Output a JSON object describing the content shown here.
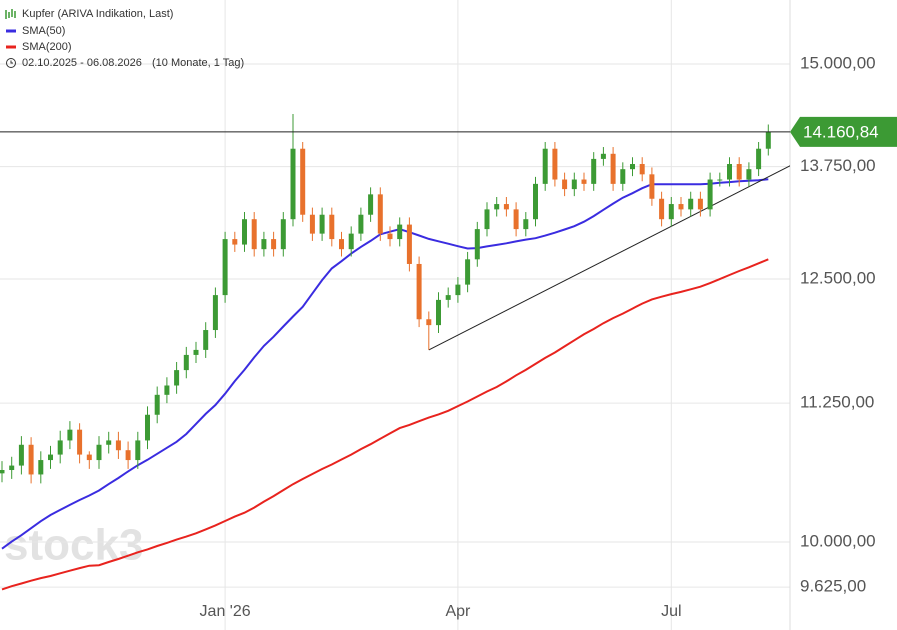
{
  "chart_data": {
    "type": "candlestick",
    "watermark": "stock3",
    "period": "02.10.2025 - 06.08.2026",
    "period_note": "(10 Monate, 1 Tag)",
    "log_scale": true,
    "grid": true,
    "ylim": [
      9281,
      15837
    ],
    "yticks": [
      {
        "value": 9625,
        "label": "9.625,00"
      },
      {
        "value": 10000,
        "label": "10.000,00"
      },
      {
        "value": 11250,
        "label": "11.250,00"
      },
      {
        "value": 12500,
        "label": "12.500,00"
      },
      {
        "value": 13750,
        "label": "13.750,00"
      },
      {
        "value": 15000,
        "label": "15.000,00"
      }
    ],
    "last_price": {
      "value": 14160.84,
      "label": "14.160,84",
      "color": "#3c9a34"
    },
    "trendline": {
      "x_index": [
        44,
        79
      ],
      "values": [
        11770,
        13643
      ],
      "color": "#222222"
    },
    "categories": [
      null,
      null,
      null,
      null,
      null,
      null,
      null,
      null,
      null,
      null,
      null,
      null,
      null,
      null,
      null,
      null,
      null,
      null,
      null,
      null,
      null,
      null,
      null,
      "Jan '26",
      null,
      null,
      null,
      null,
      null,
      null,
      null,
      null,
      null,
      null,
      null,
      null,
      null,
      null,
      null,
      null,
      null,
      null,
      null,
      null,
      null,
      null,
      null,
      "Apr",
      null,
      null,
      null,
      null,
      null,
      null,
      null,
      null,
      null,
      null,
      null,
      null,
      null,
      null,
      null,
      null,
      null,
      null,
      null,
      null,
      null,
      "Jul",
      null,
      null,
      null,
      null,
      null,
      null,
      null,
      null,
      null,
      null
    ],
    "series": [
      {
        "name": "Kupfer (ARIVA Indikation, Last)",
        "color_up": "#3c9a34",
        "color_down": "#e8712c",
        "open": [
          10600,
          10630,
          10670,
          10860,
          10590,
          10720,
          10770,
          10900,
          11000,
          10770,
          10720,
          10860,
          10900,
          10810,
          10720,
          10900,
          11140,
          11330,
          11420,
          11570,
          11720,
          11770,
          11970,
          12330,
          12930,
          12870,
          13150,
          12820,
          12930,
          12820,
          13150,
          13960,
          13200,
          12990,
          13200,
          12930,
          12820,
          12990,
          13200,
          13430,
          12990,
          12930,
          13090,
          12660,
          12080,
          12020,
          12280,
          12330,
          12440,
          12710,
          13040,
          13260,
          13320,
          13260,
          13040,
          13150,
          13550,
          13960,
          13600,
          13490,
          13600,
          13550,
          13840,
          13900,
          13550,
          13720,
          13780,
          13660,
          13380,
          13150,
          13320,
          13260,
          13380,
          13260,
          13600,
          13600,
          13780,
          13600,
          13720,
          13960
        ],
        "high": [
          10710,
          10750,
          10940,
          10930,
          10800,
          10850,
          10990,
          11080,
          11060,
          10800,
          10940,
          10980,
          10980,
          10890,
          10980,
          11220,
          11410,
          11500,
          11650,
          11800,
          11850,
          12050,
          12410,
          13010,
          13010,
          13230,
          13230,
          13010,
          13010,
          13230,
          14378,
          14040,
          13280,
          13280,
          13280,
          13010,
          13070,
          13280,
          13510,
          13510,
          13070,
          13170,
          13170,
          12740,
          12160,
          12360,
          12410,
          12520,
          12790,
          13120,
          13340,
          13400,
          13400,
          13340,
          13230,
          13630,
          14040,
          14040,
          13680,
          13680,
          13680,
          13920,
          13980,
          13980,
          13800,
          13860,
          13860,
          13740,
          13460,
          13400,
          13400,
          13460,
          13460,
          13680,
          13680,
          13860,
          13860,
          13800,
          14040,
          14250
        ],
        "low": [
          10520,
          10550,
          10590,
          10510,
          10510,
          10640,
          10690,
          10820,
          10690,
          10640,
          10640,
          10780,
          10730,
          10640,
          10640,
          10820,
          11060,
          11250,
          11340,
          11490,
          11640,
          11690,
          11890,
          12250,
          12790,
          12790,
          12740,
          12740,
          12740,
          12740,
          13070,
          13120,
          12910,
          12910,
          12850,
          12740,
          12740,
          12910,
          13120,
          12910,
          12850,
          12850,
          12580,
          12000,
          11770,
          11940,
          12200,
          12250,
          12360,
          12630,
          12960,
          13180,
          13180,
          12960,
          12960,
          13070,
          13470,
          13520,
          13410,
          13410,
          13470,
          13470,
          13760,
          13470,
          13470,
          13640,
          13580,
          13300,
          13070,
          13070,
          13180,
          13180,
          13180,
          13180,
          13520,
          13520,
          13520,
          13520,
          13640,
          13880
        ],
        "close": [
          10630,
          10670,
          10860,
          10590,
          10720,
          10770,
          10900,
          11000,
          10770,
          10720,
          10860,
          10900,
          10810,
          10720,
          10900,
          11140,
          11330,
          11420,
          11570,
          11720,
          11770,
          11970,
          12330,
          12930,
          12870,
          13150,
          12820,
          12930,
          12820,
          13150,
          13960,
          13200,
          12990,
          13200,
          12930,
          12820,
          12990,
          13200,
          13430,
          12990,
          12930,
          13090,
          12660,
          12080,
          12020,
          12280,
          12330,
          12440,
          12710,
          13040,
          13260,
          13320,
          13260,
          13040,
          13150,
          13550,
          13960,
          13600,
          13490,
          13600,
          13550,
          13840,
          13900,
          13550,
          13720,
          13780,
          13660,
          13380,
          13150,
          13320,
          13260,
          13380,
          13260,
          13600,
          13600,
          13780,
          13600,
          13720,
          13960,
          14160.84
        ]
      },
      {
        "name": "SMA(50)",
        "color": "#3a2ce0",
        "values": [
          9944,
          10004,
          10058,
          10118,
          10178,
          10232,
          10276,
          10320,
          10363,
          10403,
          10447,
          10504,
          10558,
          10617,
          10673,
          10722,
          10777,
          10832,
          10887,
          10960,
          11054,
          11148,
          11233,
          11341,
          11463,
          11573,
          11695,
          11810,
          11903,
          12006,
          12108,
          12208,
          12348,
          12488,
          12612,
          12690,
          12772,
          12845,
          12910,
          12983,
          13011,
          13039,
          13006,
          12969,
          12932,
          12906,
          12879,
          12852,
          12827,
          12832,
          12850,
          12866,
          12884,
          12905,
          12924,
          12940,
          12968,
          13000,
          13036,
          13072,
          13122,
          13185,
          13255,
          13325,
          13392,
          13443,
          13500,
          13546,
          13546,
          13546,
          13546,
          13546,
          13546,
          13552,
          13562,
          13570,
          13579,
          13585,
          13592,
          13604
        ]
      },
      {
        "name": "SMA(200)",
        "color": "#e8231e",
        "values": [
          9606,
          9632,
          9654,
          9677,
          9699,
          9716,
          9738,
          9760,
          9781,
          9801,
          9805,
          9832,
          9857,
          9885,
          9913,
          9938,
          9966,
          9993,
          10021,
          10046,
          10074,
          10108,
          10142,
          10180,
          10218,
          10252,
          10296,
          10349,
          10397,
          10450,
          10503,
          10549,
          10594,
          10639,
          10680,
          10725,
          10770,
          10820,
          10865,
          10915,
          10965,
          11015,
          11045,
          11079,
          11113,
          11143,
          11177,
          11222,
          11266,
          11314,
          11362,
          11405,
          11460,
          11519,
          11572,
          11631,
          11690,
          11744,
          11805,
          11866,
          11927,
          11981,
          12040,
          12092,
          12138,
          12190,
          12241,
          12285,
          12313,
          12340,
          12364,
          12391,
          12418,
          12456,
          12499,
          12542,
          12585,
          12624,
          12667,
          12710
        ]
      }
    ]
  }
}
